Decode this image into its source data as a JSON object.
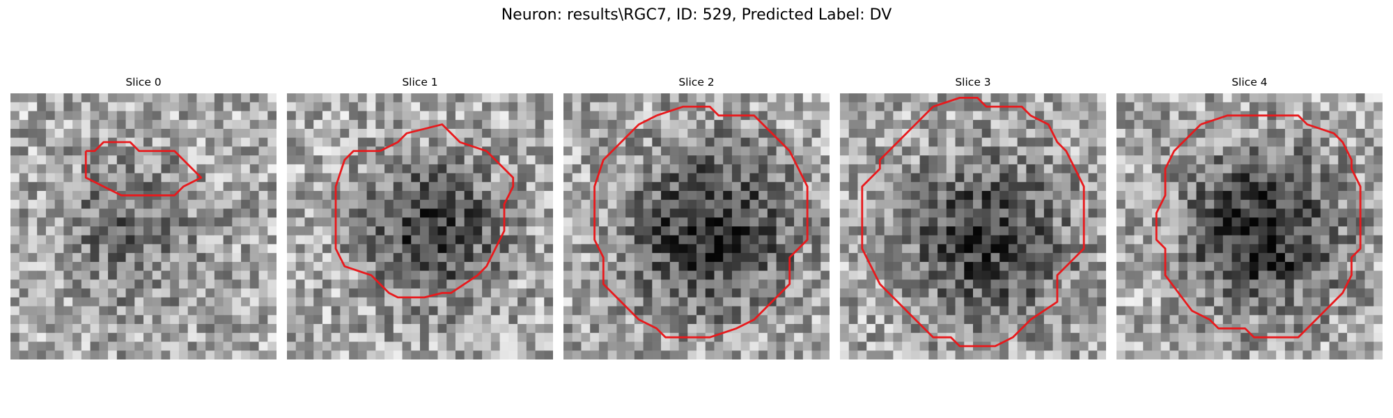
{
  "figure": {
    "title": "Neuron: results\\RGC7, ID: 529, Predicted Label: DV",
    "contour_color": "#e8191c",
    "colormap": "gray",
    "grid": {
      "rows": 30,
      "cols": 30
    }
  },
  "panels": [
    {
      "title": "Slice 0",
      "seed": 11,
      "darkness": 0.25,
      "blob": {
        "cx": 13,
        "cy": 15,
        "r": 10
      },
      "contour": [
        [
          8.5,
          6.5
        ],
        [
          9.5,
          6.5
        ],
        [
          10.5,
          5.5
        ],
        [
          13.5,
          5.5
        ],
        [
          14.5,
          6.5
        ],
        [
          18.5,
          6.5
        ],
        [
          19.5,
          7.5
        ],
        [
          21.5,
          9.5
        ],
        [
          19.5,
          10.5
        ],
        [
          18.5,
          11.5
        ],
        [
          12.5,
          11.5
        ],
        [
          10.5,
          10.5
        ],
        [
          8.5,
          9.5
        ],
        [
          8.5,
          8.5
        ],
        [
          8.5,
          6.5
        ]
      ]
    },
    {
      "title": "Slice 1",
      "seed": 23,
      "darkness": 0.45,
      "blob": {
        "cx": 16,
        "cy": 15,
        "r": 9
      },
      "contour": [
        [
          10.5,
          6.5
        ],
        [
          12.5,
          5.5
        ],
        [
          13.5,
          4.5
        ],
        [
          17.5,
          3.5
        ],
        [
          18.5,
          4.5
        ],
        [
          19.5,
          5.5
        ],
        [
          22.5,
          6.5
        ],
        [
          24.5,
          8.5
        ],
        [
          25.5,
          9.5
        ],
        [
          25.5,
          10.5
        ],
        [
          24.5,
          12.5
        ],
        [
          24.5,
          15.5
        ],
        [
          23.5,
          17.5
        ],
        [
          22.5,
          19.5
        ],
        [
          21.5,
          20.5
        ],
        [
          18.5,
          22.5
        ],
        [
          17.5,
          22.5
        ],
        [
          15.5,
          23.0
        ],
        [
          12.5,
          23.0
        ],
        [
          11.5,
          22.5
        ],
        [
          10.5,
          21.5
        ],
        [
          9.5,
          20.5
        ],
        [
          6.5,
          19.5
        ],
        [
          5.5,
          17.5
        ],
        [
          5.5,
          10.5
        ],
        [
          6.5,
          7.5
        ],
        [
          7.5,
          6.5
        ],
        [
          10.5,
          6.5
        ]
      ]
    },
    {
      "title": "Slice 2",
      "seed": 37,
      "darkness": 0.5,
      "blob": {
        "cx": 16,
        "cy": 15,
        "r": 11
      },
      "contour": [
        [
          10.5,
          2.5
        ],
        [
          13.5,
          1.5
        ],
        [
          16.5,
          1.5
        ],
        [
          17.5,
          2.5
        ],
        [
          21.5,
          2.5
        ],
        [
          23.5,
          4.5
        ],
        [
          25.5,
          6.5
        ],
        [
          26.5,
          8.5
        ],
        [
          27.5,
          10.5
        ],
        [
          27.5,
          16.5
        ],
        [
          26.5,
          17.5
        ],
        [
          25.5,
          18.5
        ],
        [
          25.5,
          21.5
        ],
        [
          21.5,
          25.5
        ],
        [
          19.5,
          26.5
        ],
        [
          16.5,
          27.5
        ],
        [
          11.5,
          27.5
        ],
        [
          10.5,
          26.5
        ],
        [
          8.5,
          25.5
        ],
        [
          6.5,
          23.5
        ],
        [
          4.5,
          21.5
        ],
        [
          4.5,
          18.5
        ],
        [
          3.5,
          16.5
        ],
        [
          3.5,
          10.5
        ],
        [
          4.5,
          7.5
        ],
        [
          6.5,
          5.5
        ],
        [
          8.5,
          3.5
        ],
        [
          10.5,
          2.5
        ]
      ]
    },
    {
      "title": "Slice 3",
      "seed": 53,
      "darkness": 0.45,
      "blob": {
        "cx": 16,
        "cy": 16,
        "r": 11
      },
      "contour": [
        [
          10.5,
          1.5
        ],
        [
          13.5,
          0.5
        ],
        [
          15.5,
          0.5
        ],
        [
          16.5,
          1.5
        ],
        [
          20.5,
          1.5
        ],
        [
          21.5,
          2.5
        ],
        [
          23.5,
          3.5
        ],
        [
          24.5,
          5.5
        ],
        [
          25.5,
          6.5
        ],
        [
          26.5,
          8.5
        ],
        [
          27.5,
          10.5
        ],
        [
          27.5,
          17.5
        ],
        [
          26.5,
          18.5
        ],
        [
          24.5,
          20.5
        ],
        [
          24.5,
          23.5
        ],
        [
          21.5,
          25.5
        ],
        [
          19.5,
          27.5
        ],
        [
          17.5,
          28.5
        ],
        [
          13.5,
          28.5
        ],
        [
          12.5,
          27.5
        ],
        [
          10.5,
          27.5
        ],
        [
          9.5,
          26.5
        ],
        [
          8.5,
          25.5
        ],
        [
          6.5,
          23.5
        ],
        [
          4.5,
          21.5
        ],
        [
          3.5,
          19.5
        ],
        [
          2.5,
          17.5
        ],
        [
          2.5,
          10.5
        ],
        [
          4.5,
          8.5
        ],
        [
          4.5,
          7.5
        ],
        [
          6.5,
          5.5
        ],
        [
          8.5,
          3.5
        ],
        [
          10.5,
          1.5
        ]
      ]
    },
    {
      "title": "Slice 4",
      "seed": 71,
      "darkness": 0.55,
      "blob": {
        "cx": 16,
        "cy": 15,
        "r": 10
      },
      "contour": [
        [
          9.5,
          3.5
        ],
        [
          12.5,
          2.5
        ],
        [
          20.5,
          2.5
        ],
        [
          21.5,
          3.5
        ],
        [
          24.5,
          4.5
        ],
        [
          25.5,
          5.5
        ],
        [
          26.5,
          7.5
        ],
        [
          26.5,
          8.5
        ],
        [
          27.5,
          10.5
        ],
        [
          27.5,
          17.5
        ],
        [
          26.5,
          18.5
        ],
        [
          26.5,
          20.5
        ],
        [
          25.5,
          22.5
        ],
        [
          24.5,
          23.5
        ],
        [
          22.5,
          25.5
        ],
        [
          20.5,
          27.5
        ],
        [
          15.5,
          27.5
        ],
        [
          14.5,
          26.5
        ],
        [
          11.5,
          26.5
        ],
        [
          10.5,
          25.5
        ],
        [
          8.5,
          24.5
        ],
        [
          5.5,
          20.5
        ],
        [
          5.5,
          17.5
        ],
        [
          4.5,
          16.5
        ],
        [
          4.5,
          13.5
        ],
        [
          5.5,
          11.5
        ],
        [
          5.5,
          8.5
        ],
        [
          6.5,
          6.5
        ],
        [
          7.5,
          5.5
        ],
        [
          9.5,
          3.5
        ]
      ]
    }
  ]
}
